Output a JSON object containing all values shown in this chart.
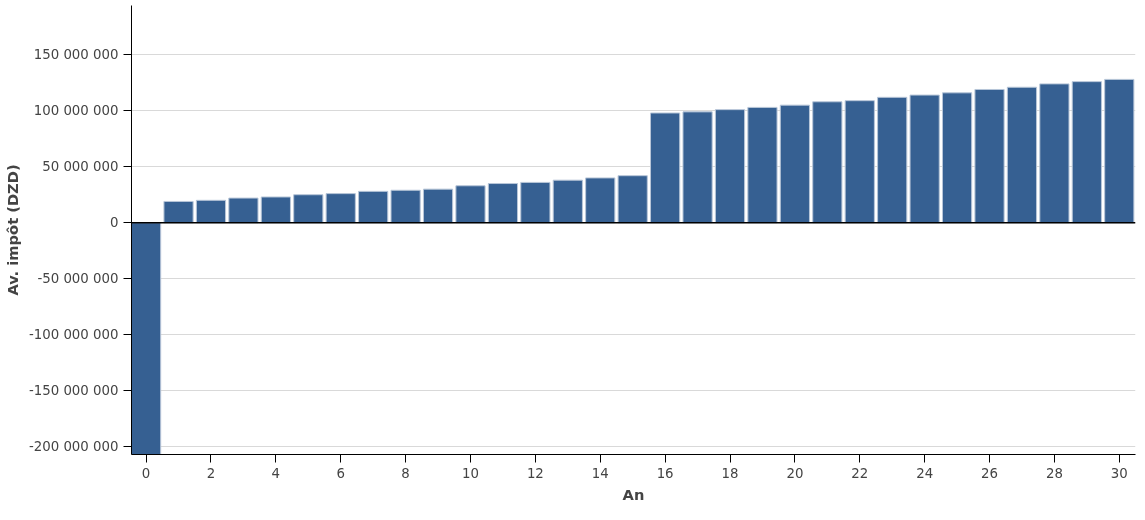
{
  "chart_data": {
    "type": "bar",
    "xlabel": "An",
    "ylabel": "Av. impôt (DZD)",
    "x": [
      0,
      1,
      2,
      3,
      4,
      5,
      6,
      7,
      8,
      9,
      10,
      11,
      12,
      13,
      14,
      15,
      16,
      17,
      18,
      19,
      20,
      21,
      22,
      23,
      24,
      25,
      26,
      27,
      28,
      29,
      30
    ],
    "values": [
      -207000000,
      19000000,
      20000000,
      22000000,
      23000000,
      25000000,
      26000000,
      28000000,
      29000000,
      30000000,
      33000000,
      35000000,
      36000000,
      38000000,
      40000000,
      42000000,
      98000000,
      99000000,
      101000000,
      103000000,
      105000000,
      108000000,
      109000000,
      112000000,
      114000000,
      116000000,
      119000000,
      121000000,
      124000000,
      126000000,
      128000000
    ],
    "color": "#366092",
    "xlim": [
      -0.45,
      30.5
    ],
    "xticks": [
      0,
      2,
      4,
      6,
      8,
      10,
      12,
      14,
      16,
      18,
      20,
      22,
      24,
      26,
      28,
      30
    ],
    "ylim": [
      -207000000,
      194000000
    ],
    "yticks": [
      {
        "value": -200000000,
        "label": "-200 000 000"
      },
      {
        "value": -150000000,
        "label": "-150 000 000"
      },
      {
        "value": -100000000,
        "label": "-100 000 000"
      },
      {
        "value": -50000000,
        "label": "-50 000 000"
      },
      {
        "value": 0,
        "label": "0"
      },
      {
        "value": 50000000,
        "label": "50 000 000"
      },
      {
        "value": 100000000,
        "label": "100 000 000"
      },
      {
        "value": 150000000,
        "label": "150 000 000"
      }
    ],
    "grid": "y"
  }
}
